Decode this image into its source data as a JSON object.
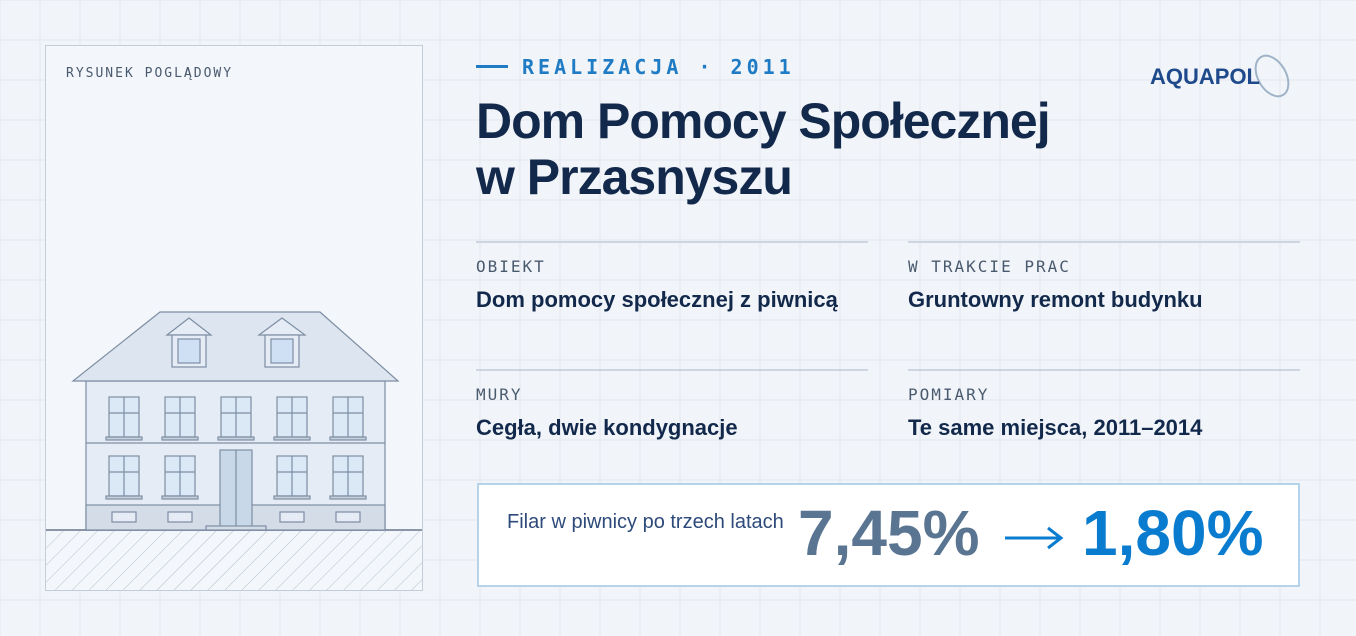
{
  "panel_label": "RYSUNEK POGLĄDOWY",
  "eyebrow": "REALIZACJA · 2011",
  "logo": "AQUAPOL",
  "title": [
    "Dom Pomocy Społecznej",
    "w Przasnyszu"
  ],
  "facts": [
    {
      "label": "OBIEKT",
      "value": "Dom pomocy społecznej z piwnicą"
    },
    {
      "label": "W TRAKCIE PRAC",
      "value": "Gruntowny remont budynku"
    },
    {
      "label": "MURY",
      "value": "Cegła, dwie kondygnacje"
    },
    {
      "label": "POMIARY",
      "value": "Te same miejsca, 2011–2014"
    }
  ],
  "result": {
    "caption": "Filar w piwnicy po trzech latach",
    "before": "7,45%",
    "after": "1,80%"
  }
}
